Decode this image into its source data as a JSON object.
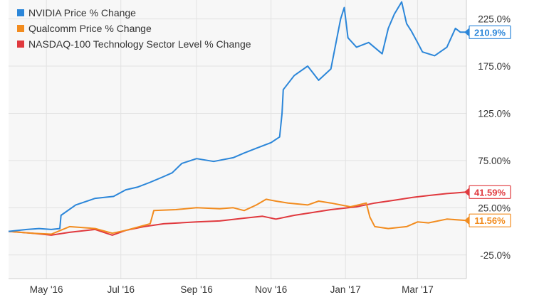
{
  "chart_data": {
    "type": "line",
    "title": "",
    "xlabel": "",
    "ylabel": "",
    "x_tick_labels": [
      "May '16",
      "Jul '16",
      "Sep '16",
      "Nov '16",
      "Jan '17",
      "Mar '17"
    ],
    "y_tick_labels": [
      "225.0%",
      "175.0%",
      "125.0%",
      "75.00%",
      "25.00%",
      "-25.0%"
    ],
    "y_ticks": [
      225,
      175,
      125,
      75,
      25,
      -25
    ],
    "ylim": [
      -50,
      245
    ],
    "xlim": [
      "2016-03-31",
      "2017-04-10"
    ],
    "grid": true,
    "legend_position": "top-left",
    "series": [
      {
        "name": "NVIDIA Price % Change",
        "color": "#2b86d9",
        "end_label": "210.9%",
        "points": [
          [
            "2016-03-31",
            0
          ],
          [
            "2016-04-15",
            2
          ],
          [
            "2016-04-25",
            3
          ],
          [
            "2016-05-05",
            2
          ],
          [
            "2016-05-12",
            3
          ],
          [
            "2016-05-13",
            17
          ],
          [
            "2016-05-25",
            28
          ],
          [
            "2016-06-10",
            35
          ],
          [
            "2016-06-25",
            37
          ],
          [
            "2016-07-05",
            44
          ],
          [
            "2016-07-15",
            47
          ],
          [
            "2016-07-25",
            52
          ],
          [
            "2016-08-05",
            58
          ],
          [
            "2016-08-12",
            62
          ],
          [
            "2016-08-20",
            72
          ],
          [
            "2016-09-01",
            77
          ],
          [
            "2016-09-15",
            74
          ],
          [
            "2016-10-01",
            78
          ],
          [
            "2016-10-10",
            83
          ],
          [
            "2016-10-20",
            88
          ],
          [
            "2016-11-01",
            94
          ],
          [
            "2016-11-08",
            100
          ],
          [
            "2016-11-10",
            125
          ],
          [
            "2016-11-11",
            150
          ],
          [
            "2016-11-20",
            165
          ],
          [
            "2016-12-01",
            175
          ],
          [
            "2016-12-10",
            160
          ],
          [
            "2016-12-20",
            172
          ],
          [
            "2016-12-28",
            225
          ],
          [
            "2016-12-31",
            237
          ],
          [
            "2017-01-03",
            205
          ],
          [
            "2017-01-10",
            195
          ],
          [
            "2017-01-20",
            200
          ],
          [
            "2017-01-31",
            188
          ],
          [
            "2017-02-05",
            215
          ],
          [
            "2017-02-10",
            230
          ],
          [
            "2017-02-16",
            243
          ],
          [
            "2017-02-20",
            220
          ],
          [
            "2017-02-24",
            212
          ],
          [
            "2017-03-01",
            200
          ],
          [
            "2017-03-05",
            190
          ],
          [
            "2017-03-15",
            186
          ],
          [
            "2017-03-25",
            195
          ],
          [
            "2017-04-01",
            215
          ],
          [
            "2017-04-05",
            211
          ],
          [
            "2017-04-10",
            210.9
          ]
        ]
      },
      {
        "name": "Qualcomm Price % Change",
        "color": "#f28c1f",
        "end_label": "11.56%",
        "points": [
          [
            "2016-03-31",
            0
          ],
          [
            "2016-04-20",
            -2
          ],
          [
            "2016-05-05",
            -3
          ],
          [
            "2016-05-20",
            5
          ],
          [
            "2016-06-10",
            3
          ],
          [
            "2016-06-24",
            -2
          ],
          [
            "2016-07-05",
            1
          ],
          [
            "2016-07-25",
            8
          ],
          [
            "2016-07-28",
            22
          ],
          [
            "2016-08-15",
            23
          ],
          [
            "2016-09-01",
            25
          ],
          [
            "2016-09-20",
            24
          ],
          [
            "2016-10-01",
            25
          ],
          [
            "2016-10-10",
            22
          ],
          [
            "2016-10-20",
            28
          ],
          [
            "2016-10-28",
            34
          ],
          [
            "2016-11-05",
            32
          ],
          [
            "2016-11-15",
            30
          ],
          [
            "2016-12-01",
            28
          ],
          [
            "2016-12-10",
            32
          ],
          [
            "2016-12-20",
            30
          ],
          [
            "2017-01-05",
            26
          ],
          [
            "2017-01-18",
            30
          ],
          [
            "2017-01-21",
            15
          ],
          [
            "2017-01-25",
            5
          ],
          [
            "2017-02-05",
            3
          ],
          [
            "2017-02-20",
            5
          ],
          [
            "2017-03-01",
            10
          ],
          [
            "2017-03-10",
            9
          ],
          [
            "2017-03-25",
            13
          ],
          [
            "2017-04-10",
            11.56
          ]
        ]
      },
      {
        "name": "NASDAQ-100 Technology Sector Level % Change",
        "color": "#e0393e",
        "end_label": "41.59%",
        "points": [
          [
            "2016-03-31",
            0
          ],
          [
            "2016-04-20",
            -2
          ],
          [
            "2016-05-05",
            -4
          ],
          [
            "2016-05-20",
            -1
          ],
          [
            "2016-06-10",
            2
          ],
          [
            "2016-06-24",
            -4
          ],
          [
            "2016-07-05",
            1
          ],
          [
            "2016-07-20",
            5
          ],
          [
            "2016-08-05",
            8
          ],
          [
            "2016-09-01",
            10
          ],
          [
            "2016-09-20",
            11
          ],
          [
            "2016-10-10",
            14
          ],
          [
            "2016-10-25",
            16
          ],
          [
            "2016-11-05",
            13
          ],
          [
            "2016-11-20",
            17
          ],
          [
            "2016-12-05",
            20
          ],
          [
            "2016-12-20",
            23
          ],
          [
            "2017-01-10",
            26
          ],
          [
            "2017-01-25",
            30
          ],
          [
            "2017-02-10",
            33
          ],
          [
            "2017-02-25",
            36
          ],
          [
            "2017-03-10",
            38
          ],
          [
            "2017-03-25",
            40
          ],
          [
            "2017-04-10",
            41.59
          ]
        ]
      }
    ]
  }
}
